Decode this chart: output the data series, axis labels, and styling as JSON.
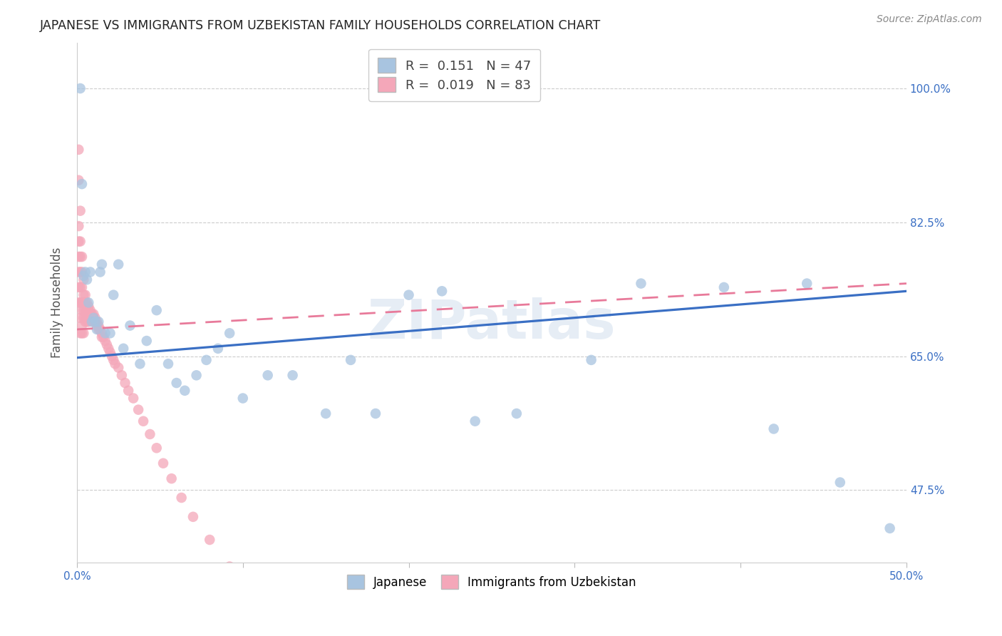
{
  "title": "JAPANESE VS IMMIGRANTS FROM UZBEKISTAN FAMILY HOUSEHOLDS CORRELATION CHART",
  "source": "Source: ZipAtlas.com",
  "ylabel": "Family Households",
  "yticks": [
    "47.5%",
    "65.0%",
    "82.5%",
    "100.0%"
  ],
  "ytick_vals": [
    0.475,
    0.65,
    0.825,
    1.0
  ],
  "xmin": 0.0,
  "xmax": 0.5,
  "ymin": 0.38,
  "ymax": 1.06,
  "watermark": "ZIPatlas",
  "r_japanese": 0.151,
  "n_japanese": 47,
  "r_uzbekistan": 0.019,
  "n_uzbekistan": 83,
  "color_japanese": "#a8c4e0",
  "color_uzbekistan": "#f4a7b9",
  "trendline_japanese": "#3a6fc4",
  "trendline_uzbekistan": "#e87a9a",
  "japanese_x": [
    0.002,
    0.003,
    0.004,
    0.005,
    0.006,
    0.007,
    0.008,
    0.009,
    0.01,
    0.011,
    0.012,
    0.013,
    0.014,
    0.015,
    0.017,
    0.02,
    0.022,
    0.025,
    0.028,
    0.032,
    0.038,
    0.042,
    0.048,
    0.055,
    0.06,
    0.065,
    0.072,
    0.078,
    0.085,
    0.092,
    0.1,
    0.115,
    0.13,
    0.15,
    0.165,
    0.18,
    0.2,
    0.22,
    0.24,
    0.265,
    0.31,
    0.34,
    0.39,
    0.42,
    0.44,
    0.46,
    0.49
  ],
  "japanese_y": [
    1.0,
    0.875,
    0.755,
    0.76,
    0.75,
    0.72,
    0.76,
    0.695,
    0.7,
    0.695,
    0.685,
    0.695,
    0.76,
    0.77,
    0.68,
    0.68,
    0.73,
    0.77,
    0.66,
    0.69,
    0.64,
    0.67,
    0.71,
    0.64,
    0.615,
    0.605,
    0.625,
    0.645,
    0.66,
    0.68,
    0.595,
    0.625,
    0.625,
    0.575,
    0.645,
    0.575,
    0.73,
    0.735,
    0.565,
    0.575,
    0.645,
    0.745,
    0.74,
    0.555,
    0.745,
    0.485,
    0.425
  ],
  "uzbekistan_x": [
    0.001,
    0.001,
    0.001,
    0.001,
    0.001,
    0.001,
    0.001,
    0.001,
    0.002,
    0.002,
    0.002,
    0.002,
    0.002,
    0.002,
    0.002,
    0.002,
    0.003,
    0.003,
    0.003,
    0.003,
    0.003,
    0.003,
    0.003,
    0.004,
    0.004,
    0.004,
    0.004,
    0.004,
    0.004,
    0.005,
    0.005,
    0.005,
    0.005,
    0.005,
    0.006,
    0.006,
    0.006,
    0.006,
    0.006,
    0.007,
    0.007,
    0.007,
    0.007,
    0.008,
    0.008,
    0.008,
    0.009,
    0.009,
    0.01,
    0.01,
    0.01,
    0.011,
    0.011,
    0.012,
    0.012,
    0.013,
    0.013,
    0.014,
    0.015,
    0.015,
    0.016,
    0.017,
    0.018,
    0.019,
    0.02,
    0.021,
    0.022,
    0.023,
    0.025,
    0.027,
    0.029,
    0.031,
    0.034,
    0.037,
    0.04,
    0.044,
    0.048,
    0.052,
    0.057,
    0.063,
    0.07,
    0.08,
    0.092
  ],
  "uzbekistan_y": [
    0.92,
    0.88,
    0.82,
    0.8,
    0.78,
    0.76,
    0.74,
    0.72,
    0.84,
    0.8,
    0.78,
    0.76,
    0.74,
    0.72,
    0.7,
    0.68,
    0.78,
    0.76,
    0.74,
    0.72,
    0.71,
    0.69,
    0.68,
    0.75,
    0.73,
    0.72,
    0.71,
    0.7,
    0.68,
    0.73,
    0.72,
    0.71,
    0.7,
    0.695,
    0.72,
    0.71,
    0.705,
    0.7,
    0.695,
    0.715,
    0.71,
    0.7,
    0.695,
    0.71,
    0.705,
    0.7,
    0.705,
    0.7,
    0.705,
    0.7,
    0.695,
    0.7,
    0.695,
    0.695,
    0.69,
    0.69,
    0.685,
    0.685,
    0.68,
    0.675,
    0.675,
    0.67,
    0.665,
    0.66,
    0.655,
    0.65,
    0.645,
    0.64,
    0.635,
    0.625,
    0.615,
    0.605,
    0.595,
    0.58,
    0.565,
    0.548,
    0.53,
    0.51,
    0.49,
    0.465,
    0.44,
    0.41,
    0.375
  ]
}
